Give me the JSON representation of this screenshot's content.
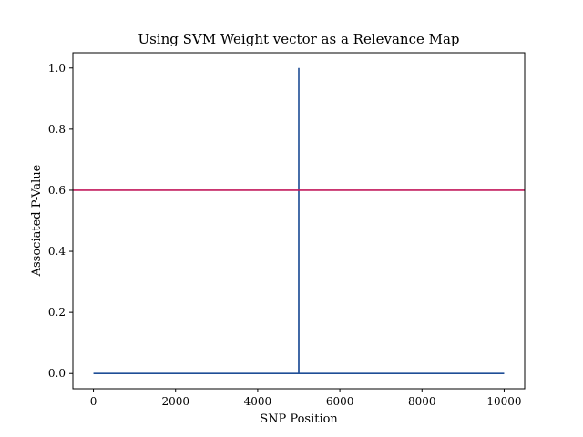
{
  "chart_data": {
    "type": "line",
    "title": "Using SVM Weight vector as a Relevance Map",
    "xlabel": "SNP Position",
    "ylabel": "Associated P-Value",
    "xlim": [
      -500,
      10500
    ],
    "ylim": [
      -0.05,
      1.05
    ],
    "xticks": [
      0,
      2000,
      4000,
      6000,
      8000,
      10000
    ],
    "yticks": [
      0.0,
      0.2,
      0.4,
      0.6,
      0.8,
      1.0
    ],
    "xtick_labels": [
      "0",
      "2000",
      "4000",
      "6000",
      "8000",
      "10000"
    ],
    "ytick_labels": [
      "0.0",
      "0.2",
      "0.4",
      "0.6",
      "0.8",
      "1.0"
    ],
    "grid": false,
    "legend": false,
    "series": [
      {
        "color": "#1f4e96",
        "x": [
          0,
          4999,
          5000,
          5001,
          10000
        ],
        "y": [
          0.0,
          0.0,
          1.0,
          0.0,
          0.0
        ]
      }
    ],
    "hlines": [
      {
        "y": 0.6,
        "color": "#c2185b"
      }
    ]
  }
}
